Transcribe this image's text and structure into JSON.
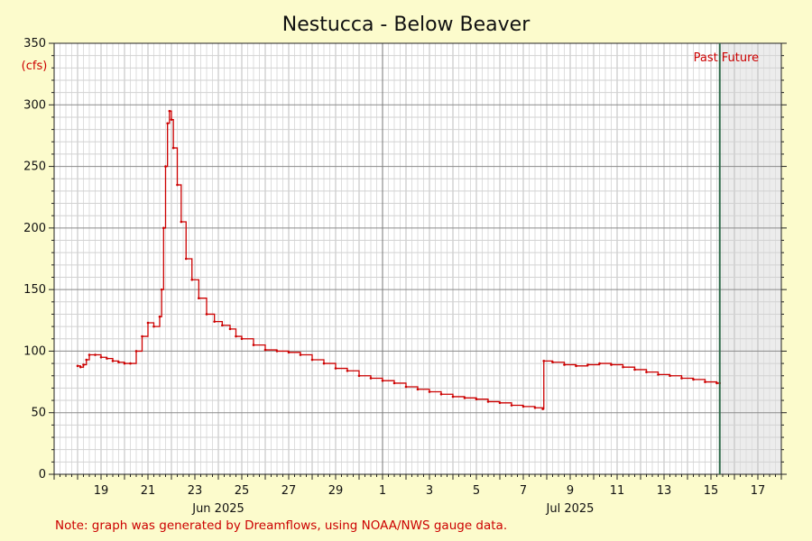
{
  "chart_data": {
    "type": "line",
    "title": "Nestucca - Below Beaver",
    "ylabel": "(cfs)",
    "ylim": [
      0,
      350
    ],
    "yticks": [
      0,
      50,
      100,
      150,
      200,
      250,
      300,
      350
    ],
    "x_range": [
      "2025-06-17",
      "2025-07-18"
    ],
    "x_day_labels": [
      {
        "label": "19",
        "date": "2025-06-19"
      },
      {
        "label": "21",
        "date": "2025-06-21"
      },
      {
        "label": "23",
        "date": "2025-06-23"
      },
      {
        "label": "25",
        "date": "2025-06-25"
      },
      {
        "label": "27",
        "date": "2025-06-27"
      },
      {
        "label": "29",
        "date": "2025-06-29"
      },
      {
        "label": "1",
        "date": "2025-07-01"
      },
      {
        "label": "3",
        "date": "2025-07-03"
      },
      {
        "label": "5",
        "date": "2025-07-05"
      },
      {
        "label": "7",
        "date": "2025-07-07"
      },
      {
        "label": "9",
        "date": "2025-07-09"
      },
      {
        "label": "11",
        "date": "2025-07-11"
      },
      {
        "label": "13",
        "date": "2025-07-13"
      },
      {
        "label": "15",
        "date": "2025-07-15"
      },
      {
        "label": "17",
        "date": "2025-07-17"
      }
    ],
    "x_month_labels": [
      {
        "label": "Jun 2025",
        "date": "2025-06-24"
      },
      {
        "label": "Jul 2025",
        "date": "2025-07-09"
      }
    ],
    "month_boundary": "2025-07-01",
    "now": "2025-07-15T09:00",
    "past_label": "Past",
    "future_label": "Future",
    "grid": true,
    "series": [
      {
        "color": "#cc0000",
        "points": [
          [
            "2025-06-18T00:00",
            88
          ],
          [
            "2025-06-18T03:00",
            87
          ],
          [
            "2025-06-18T06:00",
            89
          ],
          [
            "2025-06-18T09:00",
            93
          ],
          [
            "2025-06-18T12:00",
            97
          ],
          [
            "2025-06-18T18:00",
            97
          ],
          [
            "2025-06-19T00:00",
            95
          ],
          [
            "2025-06-19T06:00",
            94
          ],
          [
            "2025-06-19T12:00",
            92
          ],
          [
            "2025-06-19T18:00",
            91
          ],
          [
            "2025-06-20T00:00",
            90
          ],
          [
            "2025-06-20T06:00",
            90
          ],
          [
            "2025-06-20T12:00",
            100
          ],
          [
            "2025-06-20T18:00",
            112
          ],
          [
            "2025-06-21T00:00",
            123
          ],
          [
            "2025-06-21T06:00",
            120
          ],
          [
            "2025-06-21T12:00",
            128
          ],
          [
            "2025-06-21T14:00",
            150
          ],
          [
            "2025-06-21T16:00",
            200
          ],
          [
            "2025-06-21T18:00",
            250
          ],
          [
            "2025-06-21T20:00",
            285
          ],
          [
            "2025-06-21T22:00",
            295
          ],
          [
            "2025-06-22T00:00",
            288
          ],
          [
            "2025-06-22T02:00",
            265
          ],
          [
            "2025-06-22T06:00",
            235
          ],
          [
            "2025-06-22T10:00",
            205
          ],
          [
            "2025-06-22T15:00",
            175
          ],
          [
            "2025-06-22T21:00",
            158
          ],
          [
            "2025-06-23T04:00",
            143
          ],
          [
            "2025-06-23T12:00",
            130
          ],
          [
            "2025-06-23T20:00",
            124
          ],
          [
            "2025-06-24T04:00",
            121
          ],
          [
            "2025-06-24T12:00",
            118
          ],
          [
            "2025-06-24T18:00",
            112
          ],
          [
            "2025-06-25T00:00",
            110
          ],
          [
            "2025-06-25T12:00",
            105
          ],
          [
            "2025-06-26T00:00",
            101
          ],
          [
            "2025-06-26T12:00",
            100
          ],
          [
            "2025-06-27T00:00",
            99
          ],
          [
            "2025-06-27T12:00",
            97
          ],
          [
            "2025-06-28T00:00",
            93
          ],
          [
            "2025-06-28T12:00",
            90
          ],
          [
            "2025-06-29T00:00",
            86
          ],
          [
            "2025-06-29T12:00",
            84
          ],
          [
            "2025-06-30T00:00",
            80
          ],
          [
            "2025-06-30T12:00",
            78
          ],
          [
            "2025-07-01T00:00",
            76
          ],
          [
            "2025-07-01T12:00",
            74
          ],
          [
            "2025-07-02T00:00",
            71
          ],
          [
            "2025-07-02T12:00",
            69
          ],
          [
            "2025-07-03T00:00",
            67
          ],
          [
            "2025-07-03T12:00",
            65
          ],
          [
            "2025-07-04T00:00",
            63
          ],
          [
            "2025-07-04T12:00",
            62
          ],
          [
            "2025-07-05T00:00",
            61
          ],
          [
            "2025-07-05T12:00",
            59
          ],
          [
            "2025-07-06T00:00",
            58
          ],
          [
            "2025-07-06T12:00",
            56
          ],
          [
            "2025-07-07T00:00",
            55
          ],
          [
            "2025-07-07T12:00",
            54
          ],
          [
            "2025-07-07T20:00",
            53
          ],
          [
            "2025-07-07T21:00",
            92
          ],
          [
            "2025-07-08T06:00",
            91
          ],
          [
            "2025-07-08T18:00",
            89
          ],
          [
            "2025-07-09T06:00",
            88
          ],
          [
            "2025-07-09T18:00",
            89
          ],
          [
            "2025-07-10T06:00",
            90
          ],
          [
            "2025-07-10T18:00",
            89
          ],
          [
            "2025-07-11T06:00",
            87
          ],
          [
            "2025-07-11T18:00",
            85
          ],
          [
            "2025-07-12T06:00",
            83
          ],
          [
            "2025-07-12T18:00",
            81
          ],
          [
            "2025-07-13T06:00",
            80
          ],
          [
            "2025-07-13T18:00",
            78
          ],
          [
            "2025-07-14T06:00",
            77
          ],
          [
            "2025-07-14T18:00",
            75
          ],
          [
            "2025-07-15T06:00",
            74
          ],
          [
            "2025-07-15T09:00",
            74
          ]
        ]
      }
    ]
  },
  "note": "Note: graph was generated by Dreamflows, using NOAA/NWS gauge data.",
  "colors": {
    "background": "#fcfbcc",
    "plot": "#ffffff",
    "future_shade": "#ececec",
    "series": "#cc0000",
    "now_line": "#2e6b4a"
  }
}
